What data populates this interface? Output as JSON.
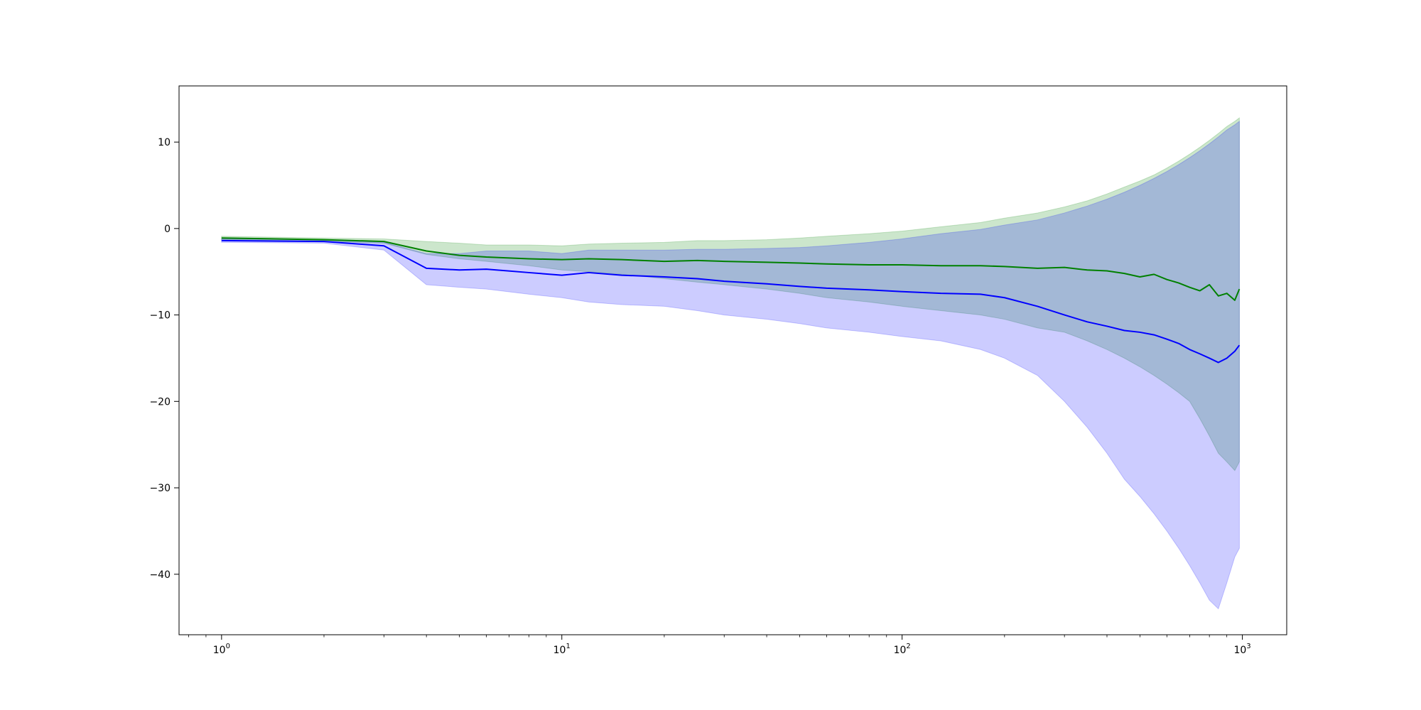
{
  "chart_data": {
    "type": "line",
    "title": "",
    "xlabel": "",
    "ylabel": "",
    "x_scale": "log",
    "xlim": [
      0.75,
      1350
    ],
    "ylim": [
      -47,
      16.5
    ],
    "grid": false,
    "x_ticks": [
      {
        "value": 1,
        "base": "10",
        "exp": "0"
      },
      {
        "value": 10,
        "base": "10",
        "exp": "1"
      },
      {
        "value": 100,
        "base": "10",
        "exp": "2"
      },
      {
        "value": 1000,
        "base": "10",
        "exp": "3"
      }
    ],
    "y_ticks": [
      {
        "value": 10,
        "label": "10"
      },
      {
        "value": 0,
        "label": "0"
      },
      {
        "value": -10,
        "label": "−10"
      },
      {
        "value": -20,
        "label": "−20"
      },
      {
        "value": -30,
        "label": "−30"
      },
      {
        "value": -40,
        "label": "−40"
      }
    ],
    "series": [
      {
        "color": "#008000",
        "band_color": "#008000",
        "band_opacity": 0.2,
        "line_width": 2,
        "x": [
          1,
          2,
          3,
          4,
          5,
          6,
          8,
          10,
          12,
          15,
          20,
          25,
          30,
          40,
          50,
          60,
          80,
          100,
          130,
          170,
          200,
          250,
          300,
          350,
          400,
          450,
          500,
          550,
          600,
          650,
          700,
          750,
          800,
          850,
          900,
          950,
          980
        ],
        "y": [
          -1.1,
          -1.3,
          -1.5,
          -2.6,
          -3.1,
          -3.3,
          -3.5,
          -3.6,
          -3.5,
          -3.6,
          -3.8,
          -3.7,
          -3.8,
          -3.9,
          -4.0,
          -4.1,
          -4.2,
          -4.2,
          -4.3,
          -4.3,
          -4.4,
          -4.6,
          -4.5,
          -4.8,
          -4.9,
          -5.2,
          -5.6,
          -5.3,
          -5.9,
          -6.3,
          -6.8,
          -7.2,
          -6.5,
          -7.8,
          -7.5,
          -8.3,
          -7.0
        ],
        "lower": [
          -1.3,
          -1.5,
          -1.7,
          -3.0,
          -3.5,
          -3.8,
          -4.3,
          -4.8,
          -5.0,
          -5.3,
          -5.8,
          -6.2,
          -6.5,
          -7.0,
          -7.5,
          -8.0,
          -8.5,
          -9.0,
          -9.5,
          -10.0,
          -10.5,
          -11.5,
          -12.0,
          -13.0,
          -14.0,
          -15.0,
          -16.0,
          -17.0,
          -18.0,
          -19.0,
          -20.0,
          -22.0,
          -24.0,
          -26.0,
          -27.0,
          -28.0,
          -27.0
        ],
        "upper": [
          -0.9,
          -1.1,
          -1.2,
          -1.5,
          -1.7,
          -1.9,
          -1.9,
          -2.0,
          -1.8,
          -1.7,
          -1.6,
          -1.4,
          -1.4,
          -1.3,
          -1.1,
          -0.9,
          -0.6,
          -0.3,
          0.2,
          0.7,
          1.2,
          1.8,
          2.5,
          3.2,
          4.0,
          4.8,
          5.5,
          6.2,
          7.0,
          7.8,
          8.6,
          9.4,
          10.2,
          11.0,
          11.8,
          12.4,
          12.8
        ]
      },
      {
        "color": "#0000ff",
        "band_color": "#0000ff",
        "band_opacity": 0.2,
        "line_width": 2,
        "x": [
          1,
          2,
          3,
          4,
          5,
          6,
          8,
          10,
          12,
          15,
          20,
          25,
          30,
          40,
          50,
          60,
          80,
          100,
          130,
          170,
          200,
          250,
          300,
          350,
          400,
          450,
          500,
          550,
          600,
          650,
          700,
          750,
          800,
          850,
          900,
          950,
          980
        ],
        "y": [
          -1.4,
          -1.5,
          -2.0,
          -4.6,
          -4.8,
          -4.7,
          -5.1,
          -5.4,
          -5.1,
          -5.4,
          -5.6,
          -5.8,
          -6.1,
          -6.4,
          -6.7,
          -6.9,
          -7.1,
          -7.3,
          -7.5,
          -7.6,
          -8.0,
          -9.0,
          -10.0,
          -10.8,
          -11.3,
          -11.8,
          -12.0,
          -12.3,
          -12.8,
          -13.3,
          -14.0,
          -14.5,
          -15.0,
          -15.5,
          -15.0,
          -14.2,
          -13.5
        ],
        "lower": [
          -1.6,
          -1.7,
          -2.5,
          -6.5,
          -6.8,
          -7.0,
          -7.6,
          -8.0,
          -8.5,
          -8.8,
          -9.0,
          -9.5,
          -10.0,
          -10.5,
          -11.0,
          -11.5,
          -12.0,
          -12.5,
          -13.0,
          -14.0,
          -15.0,
          -17.0,
          -20.0,
          -23.0,
          -26.0,
          -29.0,
          -31.0,
          -33.0,
          -35.0,
          -37.0,
          -39.0,
          -41.0,
          -43.0,
          -44.0,
          -41.0,
          -38.0,
          -37.0
        ],
        "upper": [
          -1.2,
          -1.3,
          -1.6,
          -2.9,
          -2.9,
          -2.6,
          -2.6,
          -2.9,
          -2.5,
          -2.5,
          -2.5,
          -2.4,
          -2.4,
          -2.3,
          -2.2,
          -2.0,
          -1.6,
          -1.2,
          -0.6,
          -0.1,
          0.4,
          1.0,
          1.8,
          2.6,
          3.4,
          4.2,
          5.0,
          5.8,
          6.6,
          7.4,
          8.2,
          9.0,
          9.8,
          10.6,
          11.4,
          12.0,
          12.4
        ]
      }
    ]
  }
}
